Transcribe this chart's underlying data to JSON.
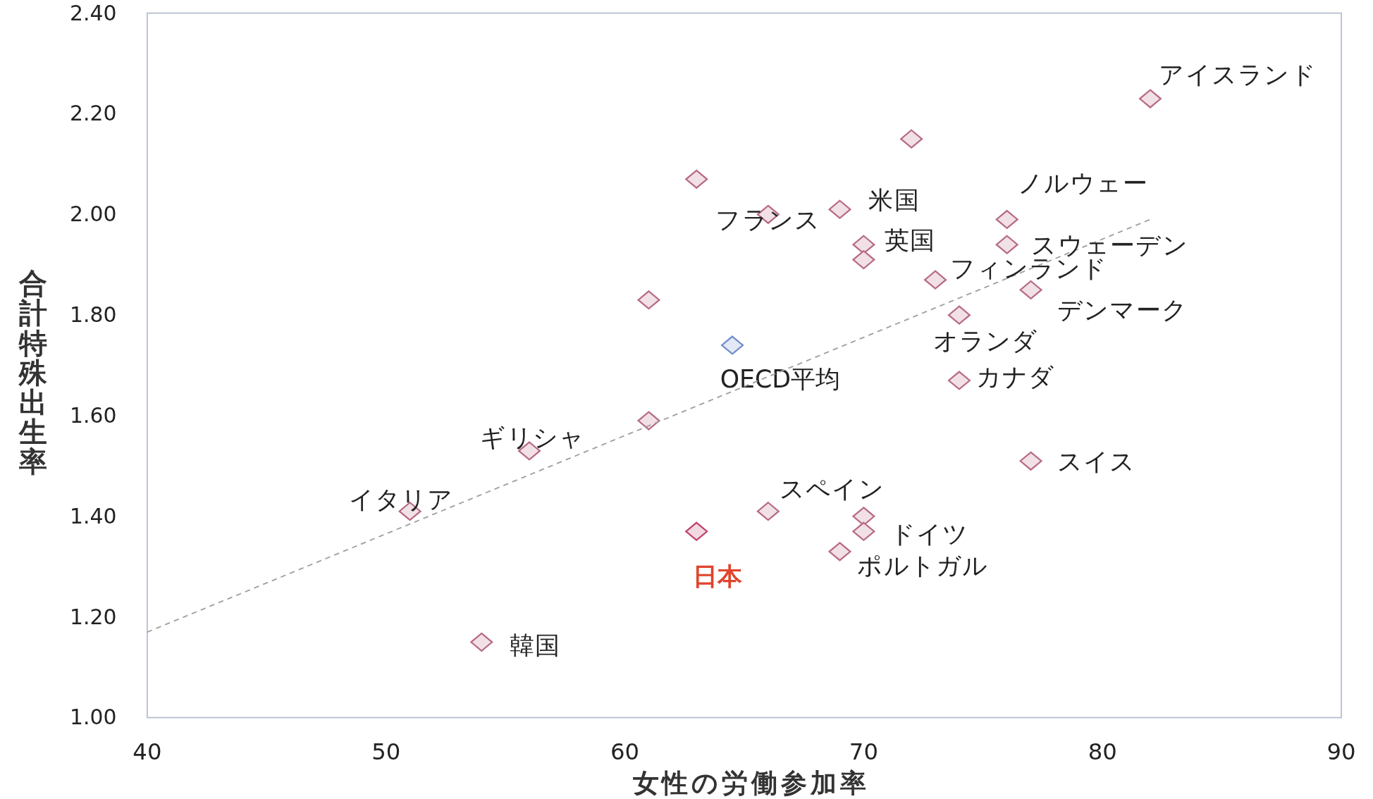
{
  "chart_data": {
    "type": "scatter",
    "xlabel": "女性の労働参加率",
    "ylabel": "合計特殊出生率",
    "xlim": [
      40,
      90
    ],
    "ylim": [
      1.0,
      2.4
    ],
    "xticks": [
      40,
      50,
      60,
      70,
      80,
      90
    ],
    "yticks": [
      {
        "value": 1.0,
        "label": "1.00"
      },
      {
        "value": 1.2,
        "label": "1.20"
      },
      {
        "value": 1.4,
        "label": "1.40"
      },
      {
        "value": 1.6,
        "label": "1.60"
      },
      {
        "value": 1.8,
        "label": "1.80"
      },
      {
        "value": 2.0,
        "label": "2.00"
      },
      {
        "value": 2.2,
        "label": "2.20"
      },
      {
        "value": 2.4,
        "label": "2.40"
      }
    ],
    "grid": false,
    "series": [
      {
        "marker": "diamond",
        "color": "#b86a86",
        "x": [
          82,
          72,
          63,
          66,
          69,
          76,
          70,
          70,
          76,
          73,
          77,
          61,
          74,
          74,
          61,
          56,
          77,
          51,
          66,
          70,
          70,
          69,
          54
        ],
        "values": [
          2.23,
          2.15,
          2.07,
          2.0,
          2.01,
          1.99,
          1.94,
          1.91,
          1.94,
          1.87,
          1.85,
          1.83,
          1.8,
          1.67,
          1.59,
          1.53,
          1.51,
          1.41,
          1.41,
          1.4,
          1.37,
          1.33,
          1.15
        ]
      },
      {
        "name": "OECD平均",
        "marker": "diamond",
        "color": "#6f8ccc",
        "x": [
          64.5
        ],
        "values": [
          1.74
        ]
      },
      {
        "name": "日本",
        "marker": "diamond",
        "color": "#c0406a",
        "x": [
          63
        ],
        "values": [
          1.37
        ]
      },
      {
        "type": "line",
        "line_style": "dashed",
        "color": "#a0a0a0",
        "x": [
          40,
          82
        ],
        "values": [
          1.17,
          1.99
        ]
      }
    ],
    "annotations": [
      {
        "text": "アイスランド",
        "x": 82,
        "y": 2.23
      },
      {
        "text": "米国",
        "x": 69,
        "y": 2.01
      },
      {
        "text": "フランス",
        "x": 66,
        "y": 2.0
      },
      {
        "text": "ノルウェー",
        "x": 76,
        "y": 1.99
      },
      {
        "text": "英国",
        "x": 70,
        "y": 1.94
      },
      {
        "text": "スウェーデン",
        "x": 76,
        "y": 1.94
      },
      {
        "text": "フィンランド",
        "x": 73,
        "y": 1.87
      },
      {
        "text": "デンマーク",
        "x": 77,
        "y": 1.85
      },
      {
        "text": "オランダ",
        "x": 74,
        "y": 1.8
      },
      {
        "text": "カナダ",
        "x": 74,
        "y": 1.67
      },
      {
        "text": "ギリシャ",
        "x": 56,
        "y": 1.53
      },
      {
        "text": "スイス",
        "x": 77,
        "y": 1.51
      },
      {
        "text": "イタリア",
        "x": 51,
        "y": 1.41
      },
      {
        "text": "スペイン",
        "x": 66,
        "y": 1.41
      },
      {
        "text": "ドイツ",
        "x": 70,
        "y": 1.37
      },
      {
        "text": "ポルトガル",
        "x": 69,
        "y": 1.33
      },
      {
        "text": "韓国",
        "x": 54,
        "y": 1.15
      }
    ]
  }
}
